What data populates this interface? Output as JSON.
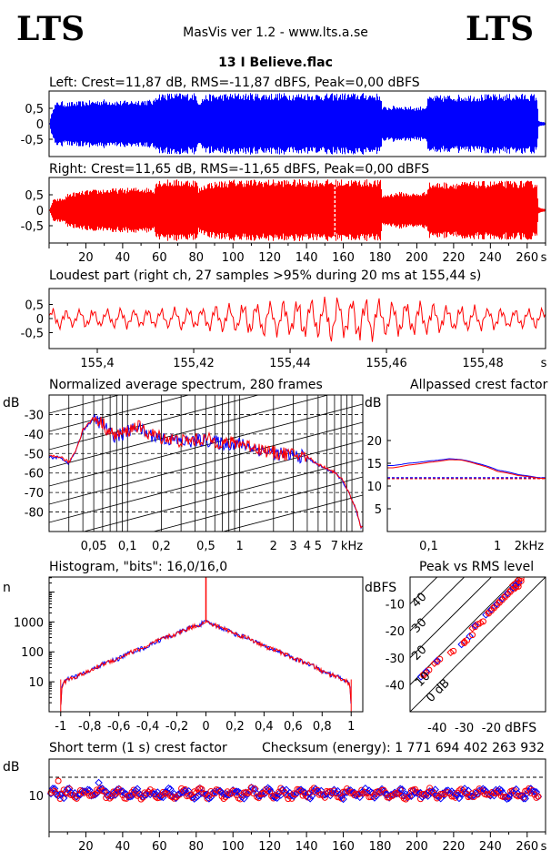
{
  "header": {
    "logo_left": "LTS",
    "logo_right": "LTS",
    "app_title": "MasVis ver 1.2 - www.lts.a.se",
    "file_name": "13 I Believe.flac"
  },
  "colors": {
    "left": "#0000ff",
    "right": "#ff0000",
    "grid": "#000000"
  },
  "chart_data": [
    {
      "type": "area",
      "id": "left",
      "title": "Left: Crest=11,87 dB, RMS=-11,87 dBFS, Peak=0,00 dBFS",
      "yticks": [
        "0,5",
        "0",
        "-0,5"
      ],
      "ylim": [
        -1,
        1
      ],
      "xlim": [
        0,
        270
      ],
      "envelope": [
        [
          0,
          0.03
        ],
        [
          2,
          0.6
        ],
        [
          5,
          0.75
        ],
        [
          10,
          0.7
        ],
        [
          20,
          0.75
        ],
        [
          30,
          0.8
        ],
        [
          40,
          0.75
        ],
        [
          50,
          0.8
        ],
        [
          57,
          0.78
        ],
        [
          58,
          1
        ],
        [
          70,
          1
        ],
        [
          80,
          1
        ],
        [
          81,
          0.75
        ],
        [
          85,
          0.95
        ],
        [
          100,
          1
        ],
        [
          120,
          1
        ],
        [
          140,
          1
        ],
        [
          150,
          0.98
        ],
        [
          160,
          1
        ],
        [
          175,
          1
        ],
        [
          180,
          0.98
        ],
        [
          181,
          0.55
        ],
        [
          190,
          0.6
        ],
        [
          200,
          0.55
        ],
        [
          205,
          0.6
        ],
        [
          206,
          0.9
        ],
        [
          220,
          0.95
        ],
        [
          240,
          0.96
        ],
        [
          260,
          0.98
        ],
        [
          265,
          0.97
        ],
        [
          266,
          0.1
        ],
        [
          270,
          0.03
        ]
      ]
    },
    {
      "type": "area",
      "id": "right",
      "title": "Right: Crest=11,65 dB, RMS=-11,65 dBFS, Peak=0,00 dBFS",
      "yticks": [
        "0,5",
        "0",
        "-0,5"
      ],
      "ylim": [
        -1,
        1
      ],
      "xlim": [
        0,
        270
      ],
      "xticks": [
        "20",
        "40",
        "60",
        "80",
        "100",
        "120",
        "140",
        "160",
        "180",
        "200",
        "220",
        "240",
        "260",
        "s"
      ],
      "marker_x": 155.44,
      "envelope": [
        [
          0,
          0.03
        ],
        [
          2,
          0.35
        ],
        [
          8,
          0.4
        ],
        [
          10,
          0.55
        ],
        [
          20,
          0.65
        ],
        [
          30,
          0.7
        ],
        [
          40,
          0.72
        ],
        [
          50,
          0.75
        ],
        [
          57,
          0.72
        ],
        [
          58,
          1
        ],
        [
          70,
          1
        ],
        [
          80,
          1
        ],
        [
          81,
          0.7
        ],
        [
          85,
          0.9
        ],
        [
          100,
          1
        ],
        [
          120,
          1
        ],
        [
          140,
          1
        ],
        [
          150,
          1
        ],
        [
          160,
          1
        ],
        [
          175,
          1
        ],
        [
          180,
          0.98
        ],
        [
          181,
          0.5
        ],
        [
          190,
          0.6
        ],
        [
          200,
          0.55
        ],
        [
          205,
          0.62
        ],
        [
          206,
          0.9
        ],
        [
          220,
          0.92
        ],
        [
          240,
          0.95
        ],
        [
          260,
          0.96
        ],
        [
          265,
          0.95
        ],
        [
          266,
          0.1
        ],
        [
          270,
          0.03
        ]
      ]
    },
    {
      "type": "line",
      "id": "loudest",
      "title": "Loudest part (right ch, 27 samples >95% during 20 ms at 155,44 s)",
      "yticks": [
        "0,5",
        "0",
        "-0,5"
      ],
      "xticks": [
        "155,4",
        "155,42",
        "155,44",
        "155,46",
        "155,48",
        "s"
      ],
      "xlim": [
        155.39,
        155.493
      ],
      "ylim": [
        -1,
        1
      ]
    },
    {
      "type": "line",
      "id": "spectrum",
      "title": "Normalized average spectrum, 280 frames",
      "ylabel": "dB",
      "yticks": [
        "-30",
        "-40",
        "-50",
        "-60",
        "-70",
        "-80"
      ],
      "xticks": [
        "0,05",
        "0,1",
        "0,2",
        "0,5",
        "1",
        "2",
        "3",
        "4",
        "5",
        "7",
        "kHz"
      ],
      "ylim": [
        -90,
        -20
      ],
      "series_shape": [
        [
          0.02,
          -52
        ],
        [
          0.025,
          -52
        ],
        [
          0.03,
          -55
        ],
        [
          0.035,
          -48
        ],
        [
          0.04,
          -38
        ],
        [
          0.05,
          -32
        ],
        [
          0.06,
          -35
        ],
        [
          0.07,
          -40
        ],
        [
          0.08,
          -41
        ],
        [
          0.1,
          -39
        ],
        [
          0.12,
          -36
        ],
        [
          0.15,
          -40
        ],
        [
          0.2,
          -42
        ],
        [
          0.3,
          -44
        ],
        [
          0.5,
          -43
        ],
        [
          0.7,
          -45
        ],
        [
          1,
          -45
        ],
        [
          1.5,
          -48
        ],
        [
          2,
          -50
        ],
        [
          3,
          -51
        ],
        [
          4,
          -52
        ],
        [
          5,
          -56
        ],
        [
          6,
          -58
        ],
        [
          7,
          -60
        ],
        [
          8,
          -63
        ],
        [
          9,
          -68
        ],
        [
          10,
          -74
        ],
        [
          11,
          -80
        ],
        [
          12,
          -88
        ]
      ]
    },
    {
      "type": "line",
      "id": "allpassed",
      "title": "Allpassed crest factor",
      "ylabel": "dB",
      "yticks": [
        "20",
        "15",
        "10",
        "5"
      ],
      "xticks": [
        "0,1",
        "1",
        "2",
        "kHz"
      ],
      "ylim": [
        0,
        30
      ],
      "reference": 11.8,
      "series_left": [
        [
          0.03,
          14.5
        ],
        [
          0.05,
          15
        ],
        [
          0.1,
          15.5
        ],
        [
          0.2,
          16
        ],
        [
          0.3,
          15.8
        ],
        [
          0.5,
          15
        ],
        [
          1,
          13.5
        ],
        [
          2,
          12.5
        ],
        [
          4,
          11.8
        ]
      ],
      "series_right": [
        [
          0.03,
          14
        ],
        [
          0.05,
          14.6
        ],
        [
          0.1,
          15.2
        ],
        [
          0.2,
          15.8
        ],
        [
          0.3,
          15.7
        ],
        [
          0.5,
          14.8
        ],
        [
          1,
          13.2
        ],
        [
          2,
          12.3
        ],
        [
          4,
          11.7
        ]
      ]
    },
    {
      "type": "line",
      "id": "histogram",
      "title": "Histogram, \"bits\": 16,0/16,0",
      "ylabel": "n",
      "yticks": [
        "1000",
        "100",
        "10"
      ],
      "xticks": [
        "-1",
        "-0,8",
        "-0,6",
        "-0,4",
        "-0,2",
        "0",
        "0,2",
        "0,4",
        "0,6",
        "0,8",
        "1"
      ],
      "xlim": [
        -1.08,
        1.08
      ],
      "series": [
        [
          -1,
          1
        ],
        [
          -0.99,
          8
        ],
        [
          -0.95,
          12
        ],
        [
          -0.9,
          15
        ],
        [
          -0.8,
          22
        ],
        [
          -0.6,
          60
        ],
        [
          -0.4,
          150
        ],
        [
          -0.2,
          400
        ],
        [
          -0.05,
          800
        ],
        [
          0,
          1000
        ],
        [
          0.05,
          800
        ],
        [
          0.2,
          400
        ],
        [
          0.4,
          150
        ],
        [
          0.6,
          60
        ],
        [
          0.8,
          22
        ],
        [
          0.9,
          15
        ],
        [
          0.95,
          12
        ],
        [
          0.99,
          8
        ],
        [
          1,
          1
        ]
      ]
    },
    {
      "type": "scatter",
      "id": "peak_vs_rms",
      "title": "Peak vs RMS level",
      "ylabel": "dBFS",
      "xlabel": "dBFS",
      "yticks": [
        "-10",
        "-20",
        "-30",
        "-40"
      ],
      "xticks": [
        "-40",
        "-30",
        "-20"
      ],
      "diag_labels": [
        "40",
        "30",
        "20",
        "10",
        "0 dB"
      ],
      "points": [
        [
          -46,
          -37
        ],
        [
          -45,
          -36
        ],
        [
          -44,
          -35
        ],
        [
          -41,
          -32
        ],
        [
          -40,
          -31
        ],
        [
          -35,
          -28
        ],
        [
          -31,
          -25
        ],
        [
          -30,
          -24
        ],
        [
          -28,
          -22
        ],
        [
          -27,
          -19
        ],
        [
          -26,
          -18
        ],
        [
          -24,
          -17
        ],
        [
          -22,
          -14
        ],
        [
          -21,
          -13
        ],
        [
          -20,
          -12
        ],
        [
          -19,
          -11
        ],
        [
          -18,
          -10
        ],
        [
          -17,
          -9
        ],
        [
          -16,
          -8
        ],
        [
          -15,
          -7
        ],
        [
          -14,
          -6
        ],
        [
          -13,
          -5
        ],
        [
          -12,
          -4
        ],
        [
          -12,
          -3
        ],
        [
          -11,
          -3
        ],
        [
          -11,
          -4
        ],
        [
          -10,
          -2
        ],
        [
          -10,
          -1
        ]
      ]
    },
    {
      "type": "scatter",
      "id": "short_term_crest",
      "title": "Short term (1 s) crest factor",
      "checksum": "Checksum (energy):  1 771 694 402 263 932",
      "ylabel": "dB",
      "yticks": [
        "10"
      ],
      "xticks": [
        "20",
        "40",
        "60",
        "80",
        "100",
        "120",
        "140",
        "160",
        "180",
        "200",
        "220",
        "240",
        "260",
        "s"
      ],
      "xlim": [
        0,
        270
      ],
      "reference": 15
    }
  ]
}
